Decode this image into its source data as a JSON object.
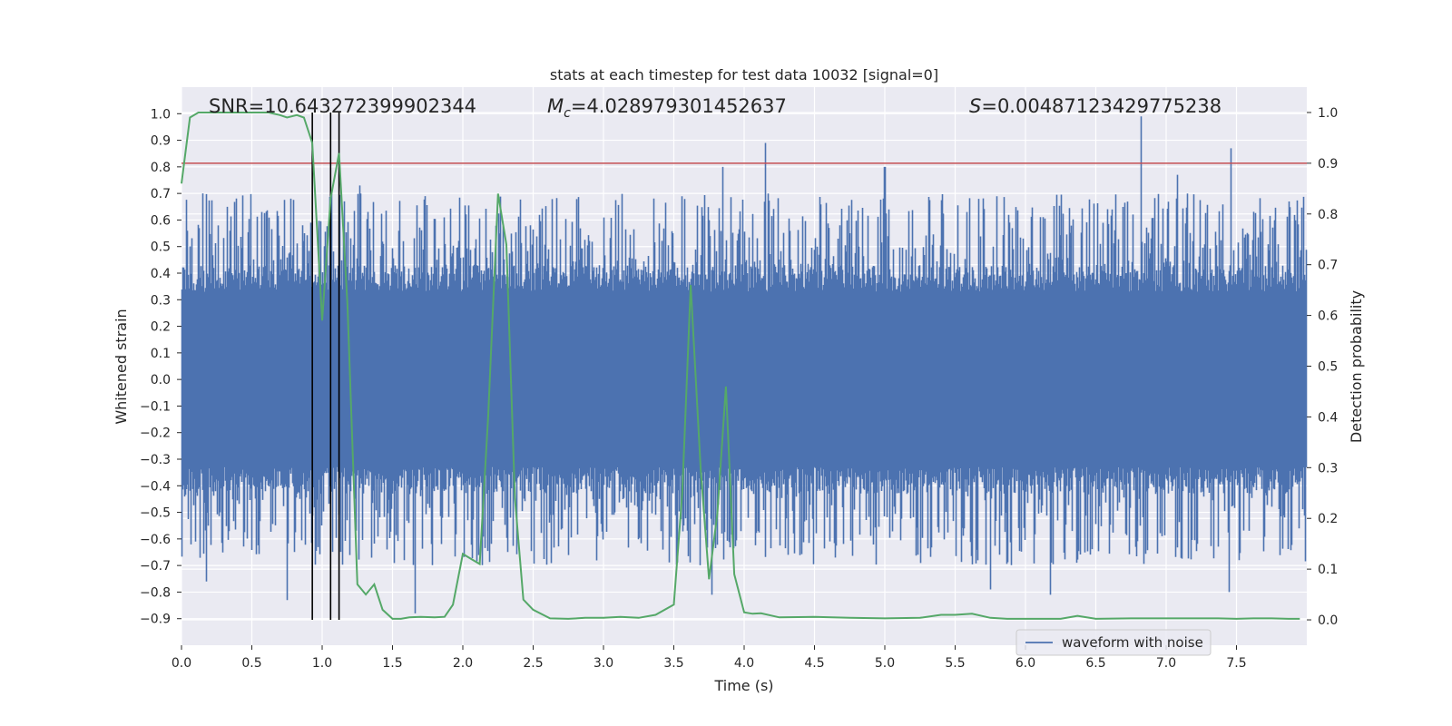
{
  "chart_data": {
    "type": "line",
    "title": "stats at each timestep for test data 10032 [signal=0]",
    "xlabel": "Time (s)",
    "ylabel_left": "Whitened strain",
    "ylabel_right": "Detection probability",
    "xlim": [
      0,
      8
    ],
    "ylim_left": [
      -1.0,
      1.1
    ],
    "ylim_right": [
      -0.05,
      1.05
    ],
    "x_ticks": [
      0.0,
      0.5,
      1.0,
      1.5,
      2.0,
      2.5,
      3.0,
      3.5,
      4.0,
      4.5,
      5.0,
      5.5,
      6.0,
      6.5,
      7.0,
      7.5
    ],
    "x_tick_labels": [
      "0.0",
      "0.5",
      "1.0",
      "1.5",
      "2.0",
      "2.5",
      "3.0",
      "3.5",
      "4.0",
      "4.5",
      "5.0",
      "5.5",
      "6.0",
      "6.5",
      "7.0",
      "7.5"
    ],
    "y_ticks_left": [
      -0.9,
      -0.8,
      -0.7,
      -0.6,
      -0.5,
      -0.4,
      -0.3,
      -0.2,
      -0.1,
      0.0,
      0.1,
      0.2,
      0.3,
      0.4,
      0.5,
      0.6,
      0.7,
      0.8,
      0.9,
      1.0
    ],
    "y_tick_labels_left": [
      "−0.9",
      "−0.8",
      "−0.7",
      "−0.6",
      "−0.5",
      "−0.4",
      "−0.3",
      "−0.2",
      "−0.1",
      "0.0",
      "0.1",
      "0.2",
      "0.3",
      "0.4",
      "0.5",
      "0.6",
      "0.7",
      "0.8",
      "0.9",
      "1.0"
    ],
    "y_ticks_right": [
      0.0,
      0.1,
      0.2,
      0.3,
      0.4,
      0.5,
      0.6,
      0.7,
      0.8,
      0.9,
      1.0
    ],
    "y_tick_labels_right": [
      "0.0",
      "0.1",
      "0.2",
      "0.3",
      "0.4",
      "0.5",
      "0.6",
      "0.7",
      "0.8",
      "0.9",
      "1.0"
    ],
    "annotations": {
      "snr": "SNR=10.643272399902344",
      "mc_symbol": "M",
      "mc_sub": "c",
      "mc_value": "=4.028979301452637",
      "s_symbol": "S",
      "s_value": "=0.00487123429775238"
    },
    "threshold": {
      "value": 0.9,
      "axis": "right",
      "color": "#c44e52"
    },
    "vertical_markers": {
      "x": [
        0.93,
        1.06,
        1.12
      ],
      "color": "#000000"
    },
    "legend": {
      "label": "waveform with noise",
      "position": "lower-right"
    },
    "series": [
      {
        "name": "waveform with noise",
        "axis": "left",
        "color": "#4c72b0",
        "style": "dense noise trace",
        "sample_rate": 2048,
        "core_envelope": [
          -0.33,
          0.33
        ],
        "spike_peaks": [
          {
            "x": 4.15,
            "y": 0.89
          },
          {
            "x": 6.82,
            "y": 0.99
          },
          {
            "x": 7.46,
            "y": 0.87
          },
          {
            "x": 3.85,
            "y": 0.8
          },
          {
            "x": 5.0,
            "y": 0.8
          },
          {
            "x": 7.08,
            "y": 0.77
          },
          {
            "x": 0.15,
            "y": 0.7
          },
          {
            "x": 1.27,
            "y": 0.73
          },
          {
            "x": 1.66,
            "y": -0.88
          },
          {
            "x": 0.75,
            "y": -0.83
          },
          {
            "x": 6.18,
            "y": -0.81
          },
          {
            "x": 3.77,
            "y": -0.81
          },
          {
            "x": 0.18,
            "y": -0.76
          },
          {
            "x": 5.75,
            "y": -0.79
          },
          {
            "x": 7.45,
            "y": -0.8
          }
        ]
      },
      {
        "name": "detection probability",
        "axis": "right",
        "color": "#55a868",
        "x": [
          0.0,
          0.06,
          0.12,
          0.3,
          0.5,
          0.62,
          0.7,
          0.75,
          0.82,
          0.87,
          0.93,
          1.0,
          1.06,
          1.12,
          1.18,
          1.25,
          1.31,
          1.37,
          1.43,
          1.5,
          1.56,
          1.62,
          1.7,
          1.8,
          1.87,
          1.93,
          2.0,
          2.06,
          2.12,
          2.18,
          2.25,
          2.31,
          2.37,
          2.43,
          2.5,
          2.62,
          2.75,
          2.87,
          3.0,
          3.12,
          3.25,
          3.37,
          3.5,
          3.56,
          3.62,
          3.69,
          3.75,
          3.81,
          3.87,
          3.93,
          4.0,
          4.06,
          4.12,
          4.25,
          4.5,
          4.75,
          5.0,
          5.25,
          5.4,
          5.5,
          5.62,
          5.75,
          5.87,
          6.0,
          6.25,
          6.37,
          6.5,
          6.75,
          7.0,
          7.12,
          7.25,
          7.37,
          7.5,
          7.62,
          7.75,
          7.87,
          7.95
        ],
        "y": [
          0.86,
          0.99,
          1.0,
          1.0,
          1.0,
          1.0,
          0.995,
          0.99,
          0.995,
          0.99,
          0.94,
          0.59,
          0.83,
          0.92,
          0.62,
          0.07,
          0.05,
          0.07,
          0.02,
          0.002,
          0.002,
          0.005,
          0.006,
          0.005,
          0.006,
          0.03,
          0.13,
          0.12,
          0.11,
          0.4,
          0.84,
          0.74,
          0.24,
          0.04,
          0.02,
          0.003,
          0.002,
          0.004,
          0.004,
          0.006,
          0.004,
          0.01,
          0.03,
          0.25,
          0.66,
          0.3,
          0.08,
          0.21,
          0.46,
          0.09,
          0.015,
          0.012,
          0.013,
          0.005,
          0.006,
          0.004,
          0.003,
          0.004,
          0.01,
          0.01,
          0.012,
          0.004,
          0.002,
          0.002,
          0.002,
          0.008,
          0.002,
          0.003,
          0.003,
          0.003,
          0.003,
          0.003,
          0.002,
          0.003,
          0.003,
          0.002,
          0.002
        ]
      }
    ]
  }
}
